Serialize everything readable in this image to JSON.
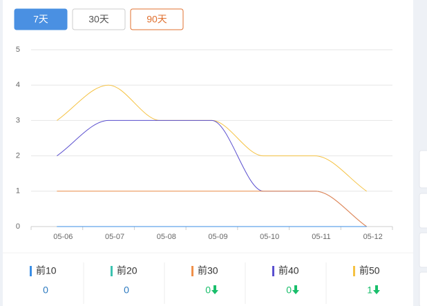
{
  "buttons": [
    "7天",
    "30天",
    "90天"
  ],
  "chart_data": {
    "type": "line",
    "smooth": true,
    "grid": true,
    "categories": [
      "05-06",
      "05-07",
      "05-08",
      "05-09",
      "05-10",
      "05-11",
      "05-12"
    ],
    "ylim": [
      0,
      5
    ],
    "yticks": [
      0,
      1,
      2,
      3,
      4,
      5
    ],
    "series": [
      {
        "name": "前10",
        "color": "#3a8ee6",
        "values": [
          0,
          0,
          0,
          0,
          0,
          0,
          0
        ]
      },
      {
        "name": "前20",
        "color": "#3cc3b0",
        "values": [
          0,
          0,
          0,
          0,
          0,
          0,
          0
        ]
      },
      {
        "name": "前30",
        "color": "#f0904a",
        "values": [
          1,
          1,
          1,
          1,
          1,
          1,
          0
        ]
      },
      {
        "name": "前40",
        "color": "#5a4fcf",
        "values": [
          2,
          3,
          3,
          3,
          1,
          1,
          0
        ]
      },
      {
        "name": "前50",
        "color": "#f5c242",
        "values": [
          3,
          4,
          3,
          3,
          2,
          2,
          1
        ]
      }
    ]
  },
  "summary": [
    {
      "value": 0
    },
    {
      "value": 0
    },
    {
      "value": 0,
      "trend": "down"
    },
    {
      "value": 0,
      "trend": "down"
    },
    {
      "value": 1,
      "trend": "down"
    }
  ]
}
